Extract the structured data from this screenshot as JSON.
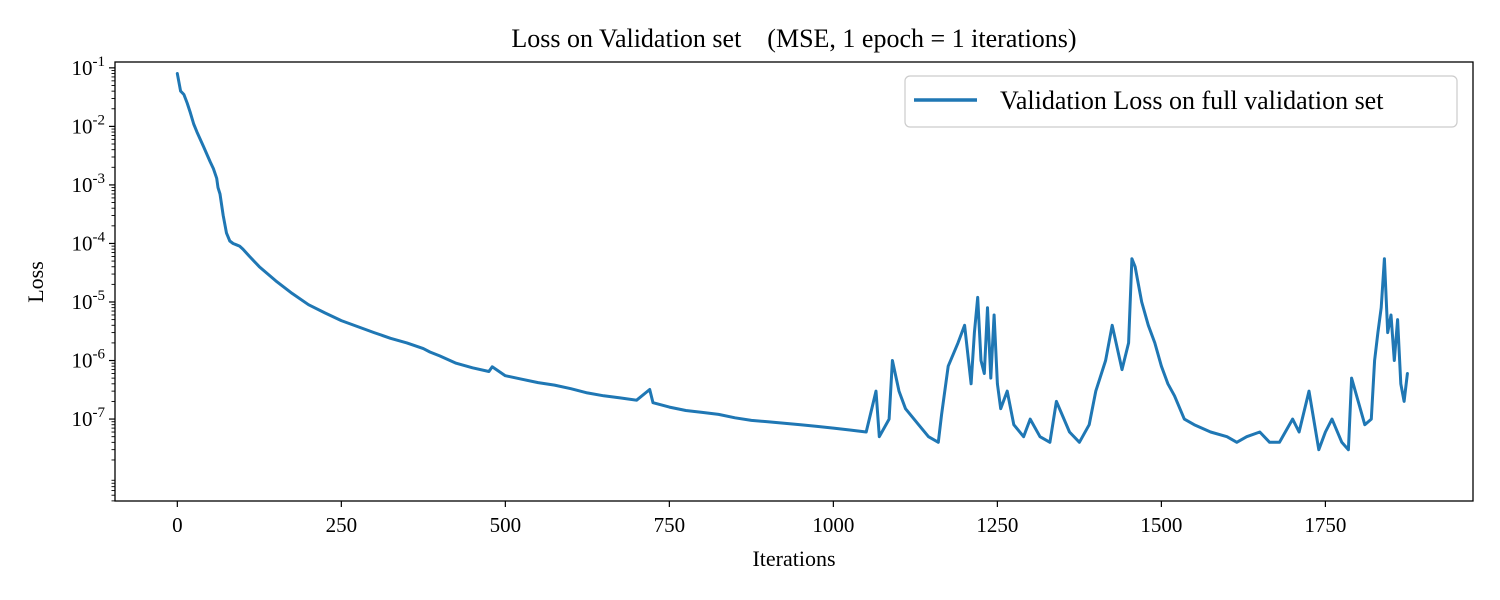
{
  "chart_data": {
    "type": "line",
    "title": "Loss on Validation set    (MSE, 1 epoch = 1 iterations)",
    "xlabel": "Iterations",
    "ylabel": "Loss",
    "xlim": [
      -95,
      1975
    ],
    "ylim_log10": [
      -8.4,
      -0.9
    ],
    "yscale": "log",
    "x_ticks": [
      0,
      250,
      500,
      750,
      1000,
      1250,
      1500,
      1750
    ],
    "x_tick_labels": [
      "0",
      "250",
      "500",
      "750",
      "1000",
      "1250",
      "1500",
      "1750"
    ],
    "y_ticks": [
      -7,
      -6,
      -5,
      -4,
      -3,
      -2,
      -1
    ],
    "y_tick_labels": [
      {
        "base": "10",
        "exp": "-7"
      },
      {
        "base": "10",
        "exp": "-6"
      },
      {
        "base": "10",
        "exp": "-5"
      },
      {
        "base": "10",
        "exp": "-4"
      },
      {
        "base": "10",
        "exp": "-3"
      },
      {
        "base": "10",
        "exp": "-2"
      },
      {
        "base": "10",
        "exp": "-1"
      }
    ],
    "grid": false,
    "legend_position": "top-right",
    "series": [
      {
        "name": "Validation Loss on full validation set",
        "color": "#1f77b4",
        "x": [
          0,
          5,
          10,
          15,
          20,
          25,
          30,
          40,
          50,
          55,
          60,
          62,
          65,
          70,
          75,
          80,
          85,
          90,
          95,
          100,
          110,
          125,
          150,
          175,
          200,
          225,
          250,
          275,
          300,
          325,
          350,
          375,
          385,
          400,
          425,
          450,
          475,
          480,
          500,
          525,
          550,
          575,
          600,
          625,
          650,
          675,
          700,
          720,
          725,
          750,
          775,
          800,
          825,
          850,
          875,
          900,
          925,
          950,
          975,
          1000,
          1025,
          1050,
          1065,
          1070,
          1085,
          1090,
          1100,
          1110,
          1130,
          1145,
          1160,
          1165,
          1175,
          1190,
          1200,
          1210,
          1215,
          1220,
          1225,
          1230,
          1235,
          1240,
          1245,
          1250,
          1255,
          1265,
          1275,
          1290,
          1300,
          1315,
          1330,
          1340,
          1360,
          1375,
          1390,
          1400,
          1415,
          1425,
          1440,
          1450,
          1455,
          1460,
          1465,
          1470,
          1480,
          1490,
          1500,
          1510,
          1520,
          1535,
          1550,
          1575,
          1600,
          1615,
          1630,
          1650,
          1665,
          1680,
          1700,
          1710,
          1725,
          1740,
          1750,
          1760,
          1775,
          1785,
          1790,
          1800,
          1810,
          1820,
          1825,
          1830,
          1835,
          1840,
          1845,
          1850,
          1855,
          1860,
          1865,
          1870,
          1875
        ],
        "y": [
          0.08,
          0.04,
          0.035,
          0.025,
          0.017,
          0.011,
          0.008,
          0.0045,
          0.0025,
          0.0019,
          0.0013,
          0.0009,
          0.0007,
          0.0003,
          0.00015,
          0.00011,
          0.0001,
          9.5e-05,
          9e-05,
          8e-05,
          6e-05,
          4e-05,
          2.3e-05,
          1.4e-05,
          9e-06,
          6.5e-06,
          4.8e-06,
          3.8e-06,
          3e-06,
          2.4e-06,
          2e-06,
          1.6e-06,
          1.4e-06,
          1.2e-06,
          9e-07,
          7.5e-07,
          6.5e-07,
          7.8e-07,
          5.5e-07,
          4.8e-07,
          4.2e-07,
          3.8e-07,
          3.3e-07,
          2.8e-07,
          2.5e-07,
          2.3e-07,
          2.1e-07,
          3.2e-07,
          1.9e-07,
          1.6e-07,
          1.4e-07,
          1.3e-07,
          1.2e-07,
          1.05e-07,
          9.5e-08,
          9e-08,
          8.5e-08,
          8e-08,
          7.5e-08,
          7e-08,
          6.5e-08,
          6e-08,
          3e-07,
          5e-08,
          1e-07,
          1e-06,
          3e-07,
          1.5e-07,
          8e-08,
          5e-08,
          4e-08,
          1.2e-07,
          8e-07,
          2e-06,
          4e-06,
          4e-07,
          3e-06,
          1.2e-05,
          1e-06,
          6e-07,
          8e-06,
          5e-07,
          6e-06,
          4e-07,
          1.5e-07,
          3e-07,
          8e-08,
          5e-08,
          1e-07,
          5e-08,
          4e-08,
          2e-07,
          6e-08,
          4e-08,
          8e-08,
          3e-07,
          1e-06,
          4e-06,
          7e-07,
          2e-06,
          5.5e-05,
          4e-05,
          2e-05,
          1e-05,
          4e-06,
          2e-06,
          8e-07,
          4e-07,
          2.5e-07,
          1e-07,
          8e-08,
          6e-08,
          5e-08,
          4e-08,
          5e-08,
          6e-08,
          4e-08,
          4e-08,
          1e-07,
          6e-08,
          3e-07,
          3e-08,
          6e-08,
          1e-07,
          4e-08,
          3e-08,
          5e-07,
          2e-07,
          8e-08,
          1e-07,
          1e-06,
          3e-06,
          8e-06,
          5.5e-05,
          3e-06,
          6e-06,
          1e-06,
          5e-06,
          4e-07,
          2e-07,
          6e-07
        ]
      }
    ]
  }
}
